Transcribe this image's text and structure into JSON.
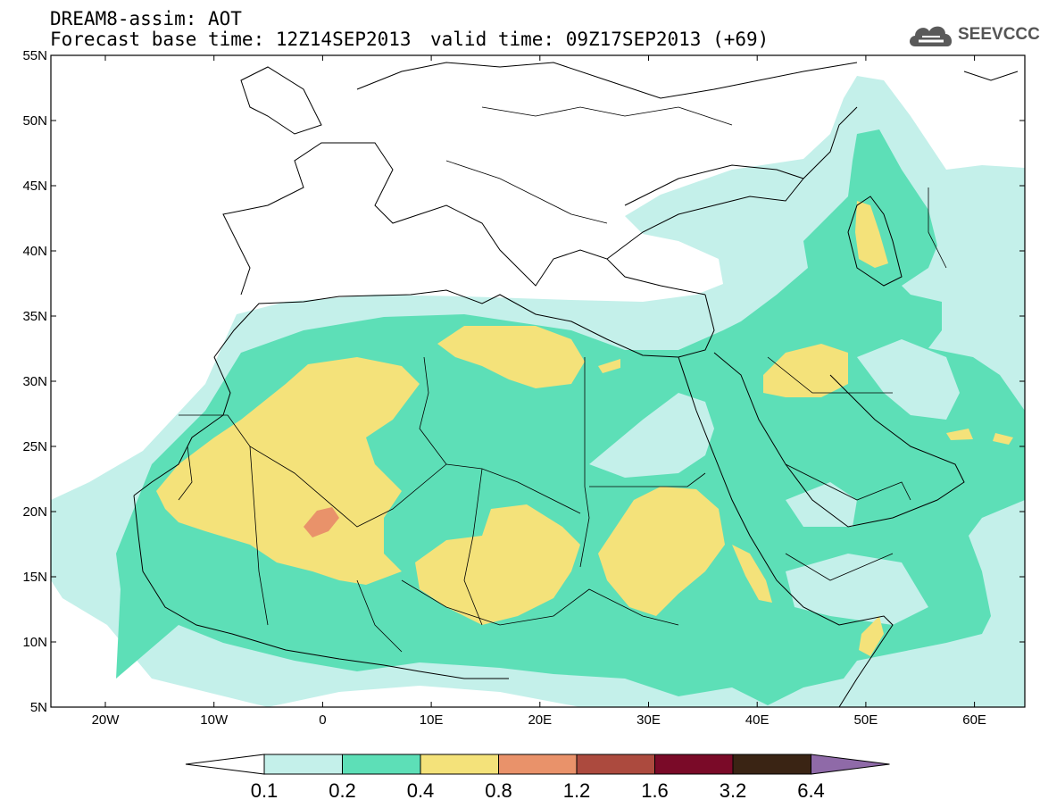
{
  "title": {
    "line1": "DREAM8-assim: AOT",
    "line2": "Forecast base time: 12Z14SEP2013",
    "valid": "valid time: 09Z17SEP2013 (+69)"
  },
  "logo": {
    "text": "SEEVCCC",
    "icon": "cloud-logo-icon"
  },
  "axes": {
    "lat_labels": [
      "55N",
      "50N",
      "45N",
      "40N",
      "35N",
      "30N",
      "25N",
      "20N",
      "15N",
      "10N",
      "5N"
    ],
    "lon_labels": [
      "20W",
      "10W",
      "0",
      "10E",
      "20E",
      "30E",
      "40E",
      "50E",
      "60E"
    ]
  },
  "legend": {
    "labels": [
      "0.1",
      "0.2",
      "0.4",
      "0.8",
      "1.2",
      "1.6",
      "3.2",
      "6.4"
    ],
    "colors": [
      "#ffffff",
      "#c4f0ea",
      "#5ddfb7",
      "#f4e27a",
      "#e9926a",
      "#ac4a3e",
      "#7a0a28",
      "#3a2414",
      "#8f6aa8"
    ]
  }
}
